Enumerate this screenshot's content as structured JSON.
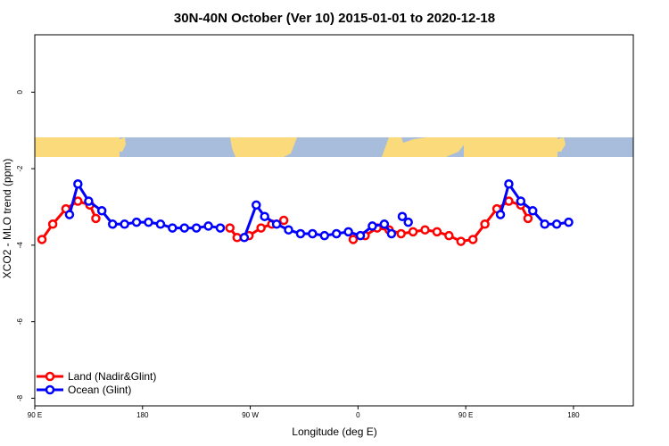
{
  "chart_data": {
    "type": "line",
    "title": "30N-40N October (Ver 10)   2015-01-01 to 2020-12-18",
    "xlabel": "Longitude (deg E)",
    "ylabel": "XCO2 - MLO trend (ppm)",
    "xlim": [
      90,
      590
    ],
    "ylim": [
      -8.2,
      1.5
    ],
    "x_ticks": [
      {
        "value": 90,
        "label": "90 E"
      },
      {
        "value": 180,
        "label": "180"
      },
      {
        "value": 270,
        "label": "90 W"
      },
      {
        "value": 360,
        "label": "0"
      },
      {
        "value": 450,
        "label": "90 E"
      },
      {
        "value": 540,
        "label": "180"
      }
    ],
    "y_ticks": [
      {
        "value": 0,
        "label": "0"
      },
      {
        "value": -2,
        "label": "-2"
      },
      {
        "value": -4,
        "label": "-4"
      },
      {
        "value": -6,
        "label": "-6"
      },
      {
        "value": -8,
        "label": "-8"
      }
    ],
    "legend_position": "bottom-left",
    "map_strip": {
      "ocean_color": "#a8bcdc",
      "land_color": "#fada7a"
    },
    "series": [
      {
        "name": "Land (Nadir&Glint)",
        "color": "#ff0000",
        "segments": [
          [
            [
              96,
              -3.85
            ],
            [
              105,
              -3.45
            ],
            [
              116,
              -3.05
            ],
            [
              126,
              -2.85
            ],
            [
              136,
              -2.95
            ],
            [
              141,
              -3.3
            ]
          ],
          [
            [
              253,
              -3.55
            ],
            [
              259,
              -3.8
            ],
            [
              269,
              -3.75
            ],
            [
              279,
              -3.55
            ],
            [
              288,
              -3.45
            ],
            [
              298,
              -3.35
            ]
          ],
          [
            [
              356,
              -3.85
            ],
            [
              366,
              -3.75
            ],
            [
              376,
              -3.55
            ],
            [
              386,
              -3.6
            ],
            [
              396,
              -3.7
            ],
            [
              406,
              -3.65
            ],
            [
              416,
              -3.6
            ],
            [
              426,
              -3.65
            ],
            [
              436,
              -3.75
            ],
            [
              446,
              -3.9
            ],
            [
              456,
              -3.85
            ],
            [
              466,
              -3.45
            ],
            [
              476,
              -3.05
            ],
            [
              486,
              -2.85
            ],
            [
              496,
              -2.95
            ],
            [
              502,
              -3.3
            ]
          ]
        ]
      },
      {
        "name": "Ocean (Glint)",
        "color": "#0000ff",
        "segments": [
          [
            [
              119,
              -3.2
            ],
            [
              126,
              -2.4
            ],
            [
              135,
              -2.85
            ],
            [
              146,
              -3.1
            ],
            [
              155,
              -3.45
            ],
            [
              165,
              -3.45
            ],
            [
              175,
              -3.4
            ],
            [
              185,
              -3.4
            ],
            [
              195,
              -3.45
            ],
            [
              205,
              -3.55
            ],
            [
              215,
              -3.55
            ],
            [
              225,
              -3.55
            ],
            [
              235,
              -3.5
            ],
            [
              245,
              -3.55
            ]
          ],
          [
            [
              265,
              -3.8
            ],
            [
              275,
              -2.95
            ],
            [
              282,
              -3.25
            ],
            [
              292,
              -3.45
            ],
            [
              302,
              -3.6
            ],
            [
              312,
              -3.7
            ],
            [
              322,
              -3.7
            ],
            [
              332,
              -3.75
            ],
            [
              342,
              -3.7
            ],
            [
              352,
              -3.65
            ],
            [
              362,
              -3.75
            ],
            [
              372,
              -3.5
            ],
            [
              382,
              -3.45
            ],
            [
              388,
              -3.7
            ]
          ],
          [
            [
              397,
              -3.25
            ],
            [
              402,
              -3.4
            ]
          ],
          [
            [
              479,
              -3.2
            ],
            [
              486,
              -2.4
            ],
            [
              496,
              -2.85
            ],
            [
              506,
              -3.1
            ],
            [
              516,
              -3.45
            ],
            [
              526,
              -3.45
            ],
            [
              536,
              -3.4
            ]
          ]
        ]
      }
    ]
  }
}
